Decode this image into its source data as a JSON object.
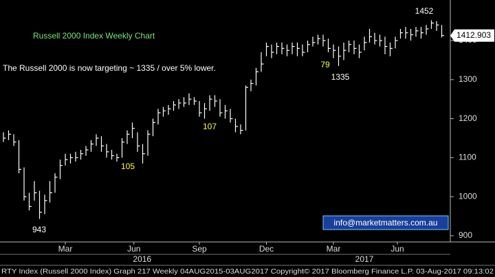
{
  "chart_data": {
    "type": "hlc",
    "title": "Russell 2000 Index Weekly Chart",
    "subtitle": "The Russell 2000 is now targeting ~ 1335 / over 5% lower.",
    "footer": "RTY Index (Russell 2000 Index) Graph 217  Weekly 04AUG2015-03AUG2017 Copyright© 2017 Bloomberg Finance L.P. 03-Aug-2017 09:13:02",
    "watermark": "info@marketmatters.com.au",
    "color": "#ffffff",
    "high": [
      1165,
      1170,
      1160,
      1145,
      1075,
      1010,
      1040,
      1015,
      1005,
      1040,
      1060,
      1095,
      1110,
      1110,
      1115,
      1120,
      1130,
      1145,
      1160,
      1155,
      1135,
      1120,
      1110,
      1150,
      1170,
      1190,
      1165,
      1135,
      1170,
      1200,
      1225,
      1230,
      1235,
      1245,
      1250,
      1255,
      1265,
      1255,
      1245,
      1240,
      1260,
      1260,
      1250,
      1235,
      1225,
      1200,
      1185,
      1285,
      1300,
      1330,
      1370,
      1395,
      1390,
      1395,
      1395,
      1390,
      1395,
      1395,
      1390,
      1400,
      1410,
      1415,
      1415,
      1405,
      1390,
      1385,
      1395,
      1400,
      1400,
      1390,
      1410,
      1430,
      1420,
      1415,
      1410,
      1395,
      1410,
      1430,
      1435,
      1430,
      1435,
      1435,
      1440,
      1452,
      1450,
      1440
    ],
    "low": [
      1140,
      1145,
      1130,
      1060,
      990,
      965,
      990,
      943,
      955,
      985,
      1010,
      1045,
      1080,
      1085,
      1090,
      1095,
      1105,
      1115,
      1130,
      1115,
      1100,
      1095,
      1090,
      1100,
      1135,
      1150,
      1115,
      1085,
      1105,
      1155,
      1185,
      1205,
      1210,
      1220,
      1225,
      1230,
      1235,
      1235,
      1205,
      1200,
      1220,
      1230,
      1205,
      1200,
      1190,
      1165,
      1160,
      1170,
      1270,
      1285,
      1320,
      1360,
      1355,
      1365,
      1365,
      1360,
      1365,
      1360,
      1360,
      1370,
      1385,
      1390,
      1385,
      1370,
      1355,
      1335,
      1350,
      1370,
      1365,
      1355,
      1375,
      1395,
      1390,
      1385,
      1365,
      1360,
      1380,
      1405,
      1405,
      1400,
      1410,
      1405,
      1415,
      1430,
      1425,
      1408
    ],
    "close": [
      1150,
      1160,
      1140,
      1070,
      1000,
      975,
      1010,
      960,
      990,
      1010,
      1050,
      1080,
      1095,
      1100,
      1100,
      1110,
      1120,
      1135,
      1150,
      1130,
      1115,
      1105,
      1100,
      1140,
      1160,
      1175,
      1130,
      1110,
      1160,
      1190,
      1215,
      1220,
      1225,
      1235,
      1240,
      1240,
      1250,
      1245,
      1215,
      1225,
      1250,
      1245,
      1215,
      1220,
      1200,
      1180,
      1170,
      1280,
      1290,
      1320,
      1340,
      1385,
      1370,
      1385,
      1380,
      1375,
      1385,
      1380,
      1370,
      1390,
      1395,
      1405,
      1400,
      1380,
      1375,
      1360,
      1375,
      1390,
      1380,
      1370,
      1395,
      1410,
      1400,
      1400,
      1385,
      1380,
      1400,
      1420,
      1420,
      1415,
      1425,
      1420,
      1430,
      1445,
      1440,
      1413
    ],
    "last_price": 1412.903,
    "annotations": [
      "943",
      "105",
      "107",
      "79",
      "1335",
      "1452"
    ],
    "xlim": [
      -0.667,
      86.667
    ],
    "xticks": [
      {
        "value": 12,
        "label": "Mar"
      },
      {
        "value": 25.3,
        "label": "Jun"
      },
      {
        "value": 38,
        "label": "Sep"
      },
      {
        "value": 51,
        "label": "Dec"
      },
      {
        "value": 64,
        "label": "Mar"
      },
      {
        "value": 76.4,
        "label": "Jun"
      }
    ],
    "year_ticks": [
      {
        "value": 26.9,
        "label": "2016"
      },
      {
        "value": 70,
        "label": "2017"
      }
    ],
    "ylim": [
      884,
      1504
    ],
    "yticks": [
      900,
      1000,
      1100,
      1200,
      1300,
      1400
    ],
    "grid": false
  }
}
